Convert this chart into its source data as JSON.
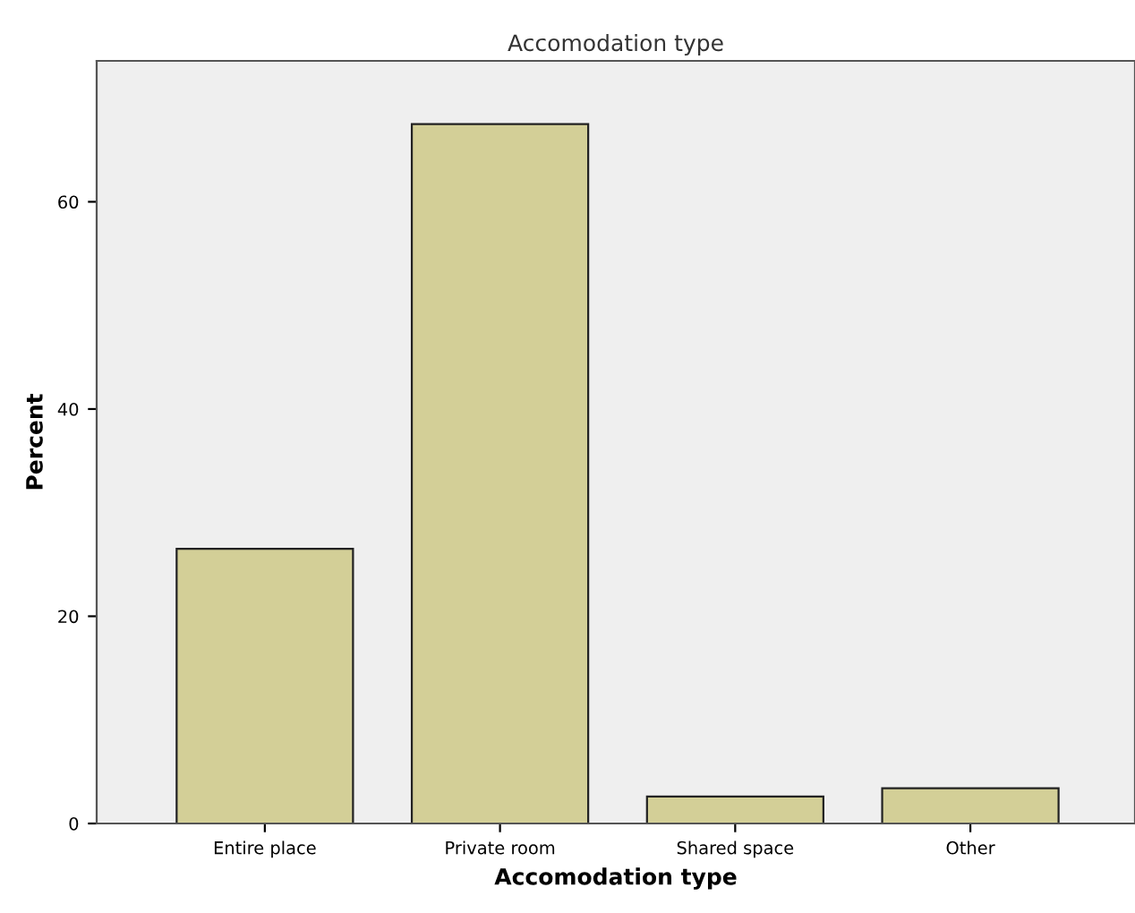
{
  "chart_data": {
    "type": "bar",
    "title": "Accomodation type",
    "xlabel": "Accomodation type",
    "ylabel": "Percent",
    "categories": [
      "Entire place",
      "Private room",
      "Shared space",
      "Other"
    ],
    "values": [
      26.5,
      67.5,
      2.6,
      3.4
    ],
    "color": "#d3cf97",
    "ylim": [
      0,
      73.6
    ],
    "yticks": [
      0,
      20,
      40,
      60
    ],
    "grid": false
  }
}
